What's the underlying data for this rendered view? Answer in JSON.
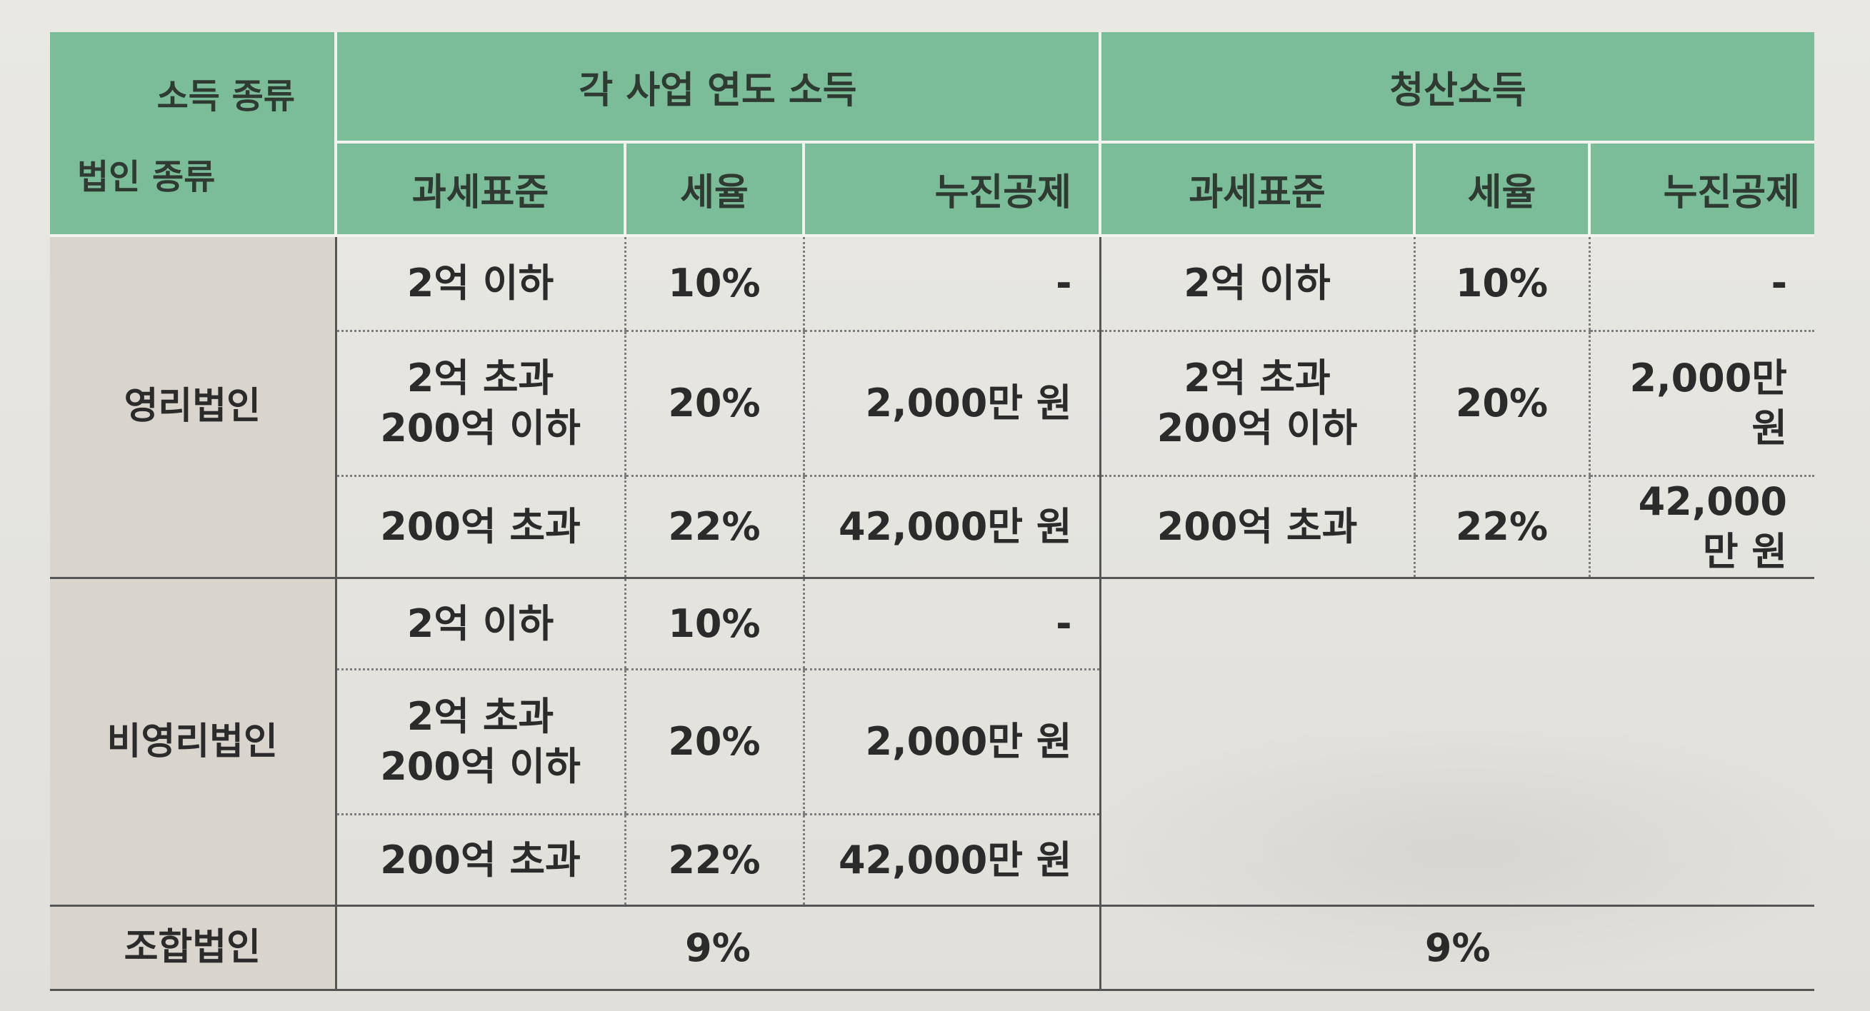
{
  "table": {
    "corner": {
      "income_type": "소득 종류",
      "corporation_type": "법인 종류"
    },
    "group_headers": {
      "annual": "각 사업 연도 소득",
      "liquidation": "청산소득"
    },
    "sub_headers": {
      "tax_base": "과세표준",
      "rate": "세율",
      "deduction": "누진공제"
    },
    "corporations": {
      "for_profit": "영리법인",
      "non_profit": "비영리법인",
      "cooperative": "조합법인"
    },
    "brackets": {
      "b1": "2억 이하",
      "b2_line1": "2억 초과",
      "b2_line2": "200억 이하",
      "b3": "200억 초과"
    },
    "rates": {
      "r1": "10%",
      "r2": "20%",
      "r3": "22%",
      "coop": "9%"
    },
    "deductions": {
      "d1": "-",
      "d2": "2,000만 원",
      "d3": "42,000만 원"
    }
  }
}
